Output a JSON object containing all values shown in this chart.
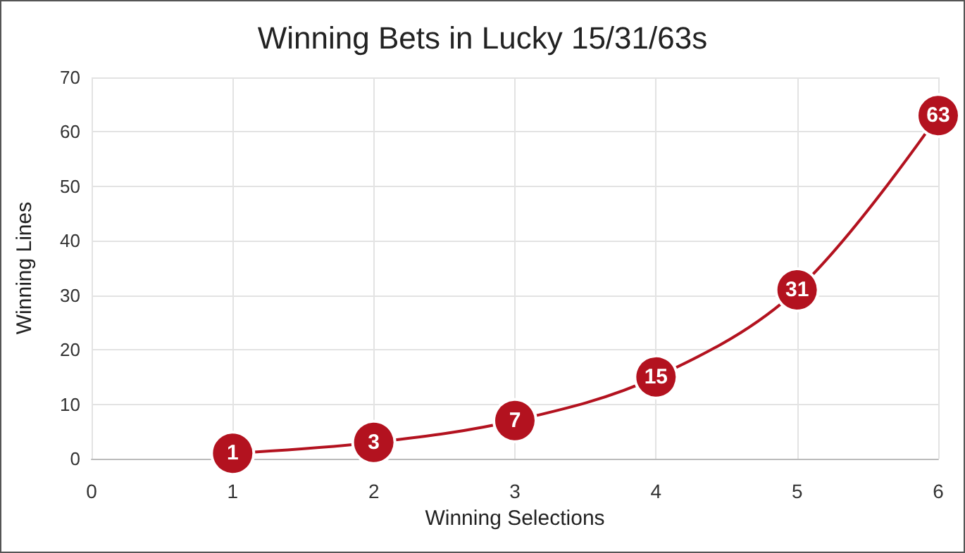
{
  "chart_data": {
    "type": "line",
    "title": "Winning Bets in Lucky 15/31/63s",
    "xlabel": "Winning Selections",
    "ylabel": "Winning Lines",
    "x": [
      1,
      2,
      3,
      4,
      5,
      6
    ],
    "series": [
      {
        "color": "#b3121f",
        "values": [
          1,
          3,
          7,
          15,
          31,
          63
        ]
      }
    ],
    "xlim": [
      0,
      6
    ],
    "xticks": [
      0,
      1,
      2,
      3,
      4,
      5,
      6
    ],
    "ylim": [
      0,
      70
    ],
    "yticks": [
      0,
      10,
      20,
      30,
      40,
      50,
      60,
      70
    ],
    "grid": true,
    "marker": "circle",
    "line_style": "solid",
    "data_labels": true
  }
}
